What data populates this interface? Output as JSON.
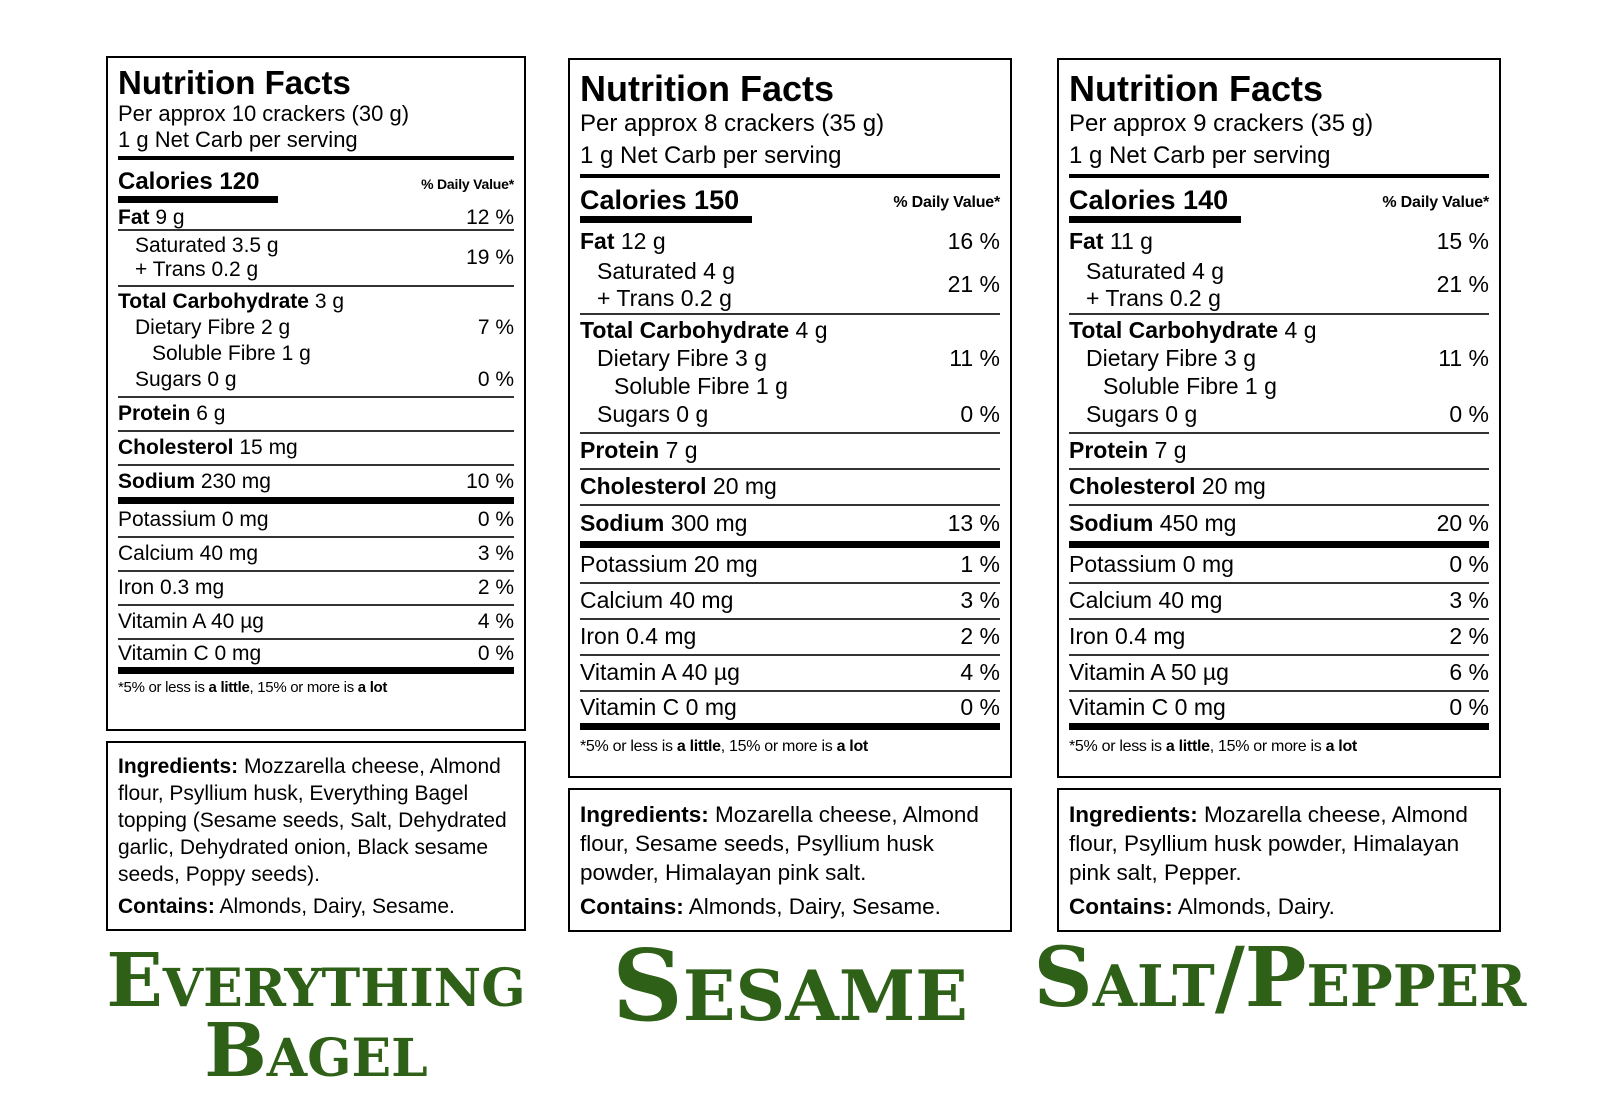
{
  "labels": [
    {
      "title": "Nutrition Facts",
      "serving": "Per approx 10 crackers (30 g)",
      "net_carb": "1 g Net Carb per serving",
      "calories": "Calories 120",
      "dv_header": "% Daily Value*",
      "fat": {
        "label": "Fat",
        "amount": "9 g",
        "dv": "12 %"
      },
      "saturated": "Saturated 3.5 g",
      "trans": "+ Trans 0.2 g",
      "sat_trans_dv": "19 %",
      "carb": {
        "label": "Total Carbohydrate",
        "amount": "3 g"
      },
      "fibre": {
        "text": "Dietary Fibre 2 g",
        "dv": "7 %"
      },
      "soluble": "Soluble Fibre 1 g",
      "sugars": {
        "text": "Sugars 0 g",
        "dv": "0 %"
      },
      "protein": {
        "label": "Protein",
        "amount": "6 g"
      },
      "cholesterol": {
        "label": "Cholesterol",
        "amount": "15 mg"
      },
      "sodium": {
        "label": "Sodium",
        "amount": "230 mg",
        "dv": "10 %"
      },
      "potassium": {
        "text": "Potassium 0 mg",
        "dv": "0 %"
      },
      "calcium": {
        "text": "Calcium 40 mg",
        "dv": "3 %"
      },
      "iron": {
        "text": "Iron 0.3 mg",
        "dv": "2 %"
      },
      "vita": {
        "text": "Vitamin A 40 µg",
        "dv": "4 %"
      },
      "vitc": {
        "text": "Vitamin C 0 mg",
        "dv": "0 %"
      },
      "footnote": {
        "a": "*5% or less is ",
        "b": "a little",
        "c": ", 15% or more is ",
        "d": "a lot"
      },
      "ingredients_label": "Ingredients:",
      "ingredients": " Mozzarella cheese, Almond flour, Psyllium husk, Everything Bagel topping (Sesame seeds, Salt, Dehydrated garlic, Dehydrated onion, Black sesame seeds, Poppy seeds).",
      "contains_label": "Contains:",
      "contains": " Almonds, Dairy, Sesame.",
      "flavor_line1": "Everything",
      "flavor_line2": "Bagel"
    },
    {
      "title": "Nutrition Facts",
      "serving": "Per approx 8 crackers (35 g)",
      "net_carb": "1 g Net Carb per serving",
      "calories": "Calories 150",
      "dv_header": "% Daily Value*",
      "fat": {
        "label": "Fat",
        "amount": "12 g",
        "dv": "16 %"
      },
      "saturated": "Saturated 4 g",
      "trans": "+ Trans 0.2 g",
      "sat_trans_dv": "21 %",
      "carb": {
        "label": "Total Carbohydrate",
        "amount": "4 g"
      },
      "fibre": {
        "text": "Dietary Fibre 3 g",
        "dv": "11 %"
      },
      "soluble": "Soluble Fibre 1 g",
      "sugars": {
        "text": "Sugars 0 g",
        "dv": "0 %"
      },
      "protein": {
        "label": "Protein",
        "amount": "7 g"
      },
      "cholesterol": {
        "label": "Cholesterol",
        "amount": "20 mg"
      },
      "sodium": {
        "label": "Sodium",
        "amount": "300 mg",
        "dv": "13 %"
      },
      "potassium": {
        "text": "Potassium 20 mg",
        "dv": "1 %"
      },
      "calcium": {
        "text": "Calcium 40 mg",
        "dv": "3 %"
      },
      "iron": {
        "text": "Iron 0.4 mg",
        "dv": "2 %"
      },
      "vita": {
        "text": "Vitamin A 40 µg",
        "dv": "4 %"
      },
      "vitc": {
        "text": "Vitamin C 0 mg",
        "dv": "0 %"
      },
      "footnote": {
        "a": "*5% or less is ",
        "b": "a little",
        "c": ", 15% or more is ",
        "d": "a lot"
      },
      "ingredients_label": "Ingredients:",
      "ingredients": " Mozarella cheese, Almond flour, Sesame seeds, Psyllium husk powder, Himalayan pink salt.",
      "contains_label": "Contains:",
      "contains": " Almonds, Dairy, Sesame.",
      "flavor_line1": "Sesame",
      "flavor_line2": ""
    },
    {
      "title": "Nutrition Facts",
      "serving": "Per approx 9 crackers (35 g)",
      "net_carb": "1 g Net Carb per serving",
      "calories": "Calories 140",
      "dv_header": "% Daily Value*",
      "fat": {
        "label": "Fat",
        "amount": "11 g",
        "dv": "15 %"
      },
      "saturated": "Saturated 4 g",
      "trans": "+ Trans 0.2 g",
      "sat_trans_dv": "21 %",
      "carb": {
        "label": "Total Carbohydrate",
        "amount": "4 g"
      },
      "fibre": {
        "text": "Dietary Fibre 3 g",
        "dv": "11 %"
      },
      "soluble": "Soluble Fibre 1 g",
      "sugars": {
        "text": "Sugars 0 g",
        "dv": "0 %"
      },
      "protein": {
        "label": "Protein",
        "amount": "7 g"
      },
      "cholesterol": {
        "label": "Cholesterol",
        "amount": "20 mg"
      },
      "sodium": {
        "label": "Sodium",
        "amount": "450 mg",
        "dv": "20 %"
      },
      "potassium": {
        "text": "Potassium 0 mg",
        "dv": "0 %"
      },
      "calcium": {
        "text": "Calcium 40 mg",
        "dv": "3 %"
      },
      "iron": {
        "text": "Iron 0.4 mg",
        "dv": "2 %"
      },
      "vita": {
        "text": "Vitamin A 50 µg",
        "dv": "6 %"
      },
      "vitc": {
        "text": "Vitamin C 0 mg",
        "dv": "0 %"
      },
      "footnote": {
        "a": "*5% or less is ",
        "b": "a little",
        "c": ", 15% or more is ",
        "d": "a lot"
      },
      "ingredients_label": "Ingredients:",
      "ingredients": " Mozarella cheese, Almond flour, Psyllium husk powder, Himalayan pink salt, Pepper.",
      "contains_label": "Contains:",
      "contains": " Almonds, Dairy.",
      "flavor_line1": "Salt/Pepper",
      "flavor_line2": ""
    }
  ]
}
